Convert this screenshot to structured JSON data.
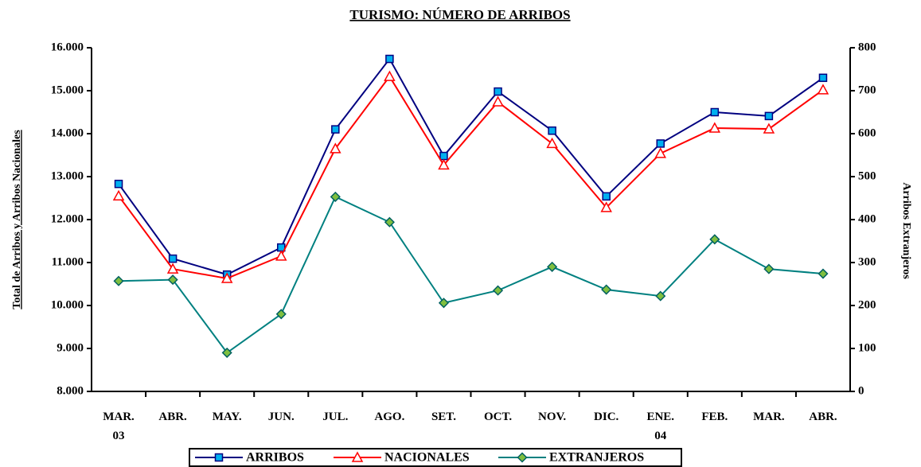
{
  "chart_data": {
    "type": "line",
    "title": "TURISMO: NÚMERO DE ARRIBOS",
    "y_label": "Total de Arribos y Arribos Nacionales",
    "y2_label": "Arribos Extranjeros",
    "categories": [
      "MAR.\n03",
      "ABR.",
      "MAY.",
      "JUN.",
      "JUL.",
      "AGO.",
      "SET.",
      "OCT.",
      "NOV.",
      "DIC.",
      "ENE.\n04",
      "FEB.",
      "MAR.",
      "ABR."
    ],
    "ylim": [
      8000,
      16000
    ],
    "yticks": [
      {
        "value": 8000,
        "label": "8.000"
      },
      {
        "value": 9000,
        "label": "9.000"
      },
      {
        "value": 10000,
        "label": "10.000"
      },
      {
        "value": 11000,
        "label": "11.000"
      },
      {
        "value": 12000,
        "label": "12.000"
      },
      {
        "value": 13000,
        "label": "13.000"
      },
      {
        "value": 14000,
        "label": "14.000"
      },
      {
        "value": 15000,
        "label": "15.000"
      },
      {
        "value": 16000,
        "label": "16.000"
      }
    ],
    "y2lim": [
      0,
      800
    ],
    "y2ticks": [
      0,
      100,
      200,
      300,
      400,
      500,
      600,
      700,
      800
    ],
    "grid": false,
    "series": [
      {
        "name": "ARRIBOS",
        "color": "#000080",
        "marker": "square",
        "marker_fill": "#00b0f0",
        "values": [
          12830,
          11090,
          10720,
          11350,
          14100,
          15740,
          13480,
          14980,
          14070,
          12540,
          13770,
          14500,
          14410,
          15300
        ]
      },
      {
        "name": "NACIONALES",
        "color": "#ff0000",
        "marker": "triangle",
        "marker_fill": "#ffffff",
        "values": [
          12550,
          10850,
          10630,
          11150,
          13650,
          15330,
          13270,
          14740,
          13770,
          12280,
          13540,
          14130,
          14110,
          15020
        ]
      },
      {
        "name": "EXTRANJEROS",
        "color": "#008080",
        "marker": "diamond",
        "marker_fill": "#7fbf3f",
        "axis": "y2",
        "values": [
          257,
          260,
          90,
          180,
          453,
          394,
          206,
          235,
          290,
          237,
          222,
          354,
          285,
          274
        ]
      }
    ]
  }
}
